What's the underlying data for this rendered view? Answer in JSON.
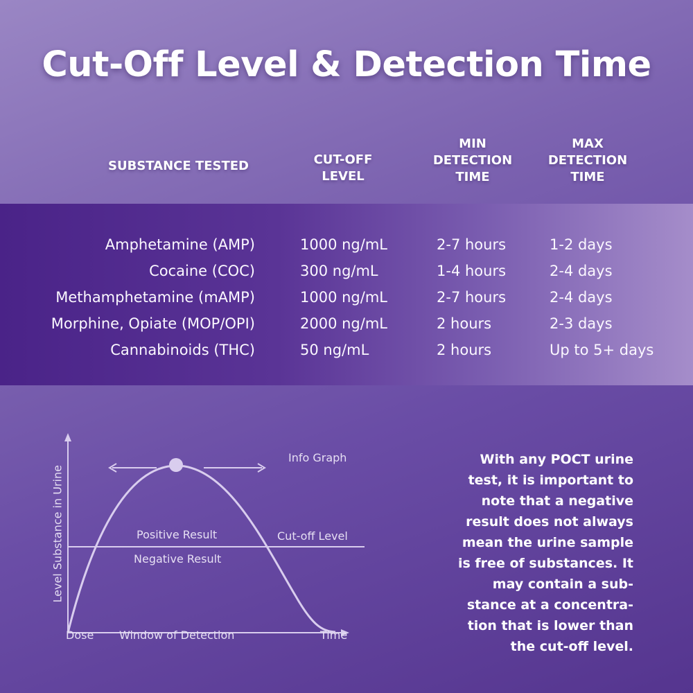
{
  "title": "Cut-Off Level & Detection Time",
  "headers": {
    "substance": "SUBSTANCE TESTED",
    "cutoff": [
      "CUT-OFF",
      "LEVEL"
    ],
    "min": [
      "MIN",
      "DETECTION",
      "TIME"
    ],
    "max": [
      "MAX",
      "DETECTION",
      "TIME"
    ]
  },
  "rows": [
    {
      "substance": "Amphetamine (AMP)",
      "cutoff": "1000 ng/mL",
      "min": "2-7 hours",
      "max": "1-2 days"
    },
    {
      "substance": "Cocaine (COC)",
      "cutoff": "300 ng/mL",
      "min": "1-4 hours",
      "max": "2-4 days"
    },
    {
      "substance": "Methamphetamine (mAMP)",
      "cutoff": "1000 ng/mL",
      "min": "2-7 hours",
      "max": "2-4 days"
    },
    {
      "substance": "Morphine, Opiate (MOP/OPI)",
      "cutoff": "2000 ng/mL",
      "min": "2 hours",
      "max": "2-3 days"
    },
    {
      "substance": "Cannabinoids (THC)",
      "cutoff": "50 ng/mL",
      "min": "2 hours",
      "max": "Up to 5+ days"
    }
  ],
  "graph": {
    "caption": "Info Graph",
    "y_axis": "Level Substance in Urine",
    "positive": "Positive Result",
    "negative": "Negative Result",
    "cutoff": "Cut-off Level",
    "dose": "Dose",
    "window": "Window of Detection",
    "time": "Time"
  },
  "note": [
    "With any POCT urine",
    "test, it is important to",
    "note that a negative",
    "result does not always",
    "mean the urine sample",
    "is free of substances. It",
    "may contain a sub-",
    "stance at a concentra-",
    "tion that is lower than",
    "the cut-off level."
  ],
  "colors": {
    "band_dark": "#4a2388",
    "band_light": "#a58dca",
    "curve": "#d9cdee"
  }
}
